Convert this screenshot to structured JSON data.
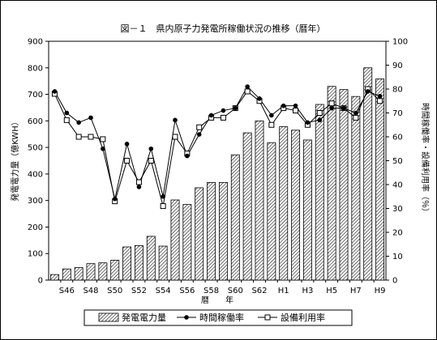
{
  "chart_data": {
    "type": "bar+line",
    "title": "図－１　県内原子力発電所稼働状況の推移（暦年）",
    "xlabel": "暦　　年",
    "ylabel_left": "発電電力量（億KWH）",
    "ylabel_right": "時間稼働率・設備利用率（％）",
    "ylim_left": [
      0,
      900
    ],
    "ylim_right": [
      0,
      100
    ],
    "left_ticks": [
      "0",
      "100",
      "200",
      "300",
      "400",
      "500",
      "600",
      "700",
      "800",
      "900"
    ],
    "right_ticks": [
      "0",
      "10",
      "20",
      "30",
      "40",
      "50",
      "60",
      "70",
      "80",
      "90",
      "100"
    ],
    "categories": [
      "S45",
      "S46",
      "S47",
      "S48",
      "S49",
      "S50",
      "S51",
      "S52",
      "S53",
      "S54",
      "S55",
      "S56",
      "S57",
      "S58",
      "S59",
      "S60",
      "S61",
      "S62",
      "S63",
      "H1",
      "H2",
      "H3",
      "H4",
      "H5",
      "H6",
      "H7",
      "H8",
      "H9"
    ],
    "tick_labels": [
      "S46",
      "S48",
      "S50",
      "S52",
      "S54",
      "S56",
      "S58",
      "S60",
      "S62",
      "H1",
      "H3",
      "H5",
      "H7",
      "H9"
    ],
    "series": [
      {
        "name": "発電電力量",
        "type": "bar",
        "axis": "left",
        "pattern": "hatch",
        "values": [
          21,
          42,
          47,
          62,
          65,
          75,
          125,
          130,
          165,
          128,
          302,
          285,
          348,
          368,
          368,
          472,
          555,
          600,
          518,
          578,
          565,
          528,
          662,
          730,
          718,
          692,
          800,
          758
        ]
      },
      {
        "name": "時間稼働率",
        "type": "line",
        "axis": "right",
        "marker": "filled-circle",
        "values": [
          79,
          70,
          66,
          68,
          55,
          34,
          57,
          39,
          55,
          35,
          67,
          52,
          61,
          69,
          71,
          72,
          81,
          76,
          69,
          73,
          73,
          66,
          67,
          72,
          72,
          70,
          79,
          77
        ]
      },
      {
        "name": "設備利用率",
        "type": "line",
        "axis": "right",
        "marker": "open-square",
        "values": [
          78,
          67,
          60,
          60,
          59,
          33,
          50,
          41,
          50,
          31,
          60,
          53,
          64,
          68,
          68,
          72,
          79,
          75,
          65,
          72,
          71,
          65,
          70,
          74,
          72,
          68,
          80,
          75
        ]
      }
    ],
    "legend_position": "bottom",
    "grid": false
  }
}
